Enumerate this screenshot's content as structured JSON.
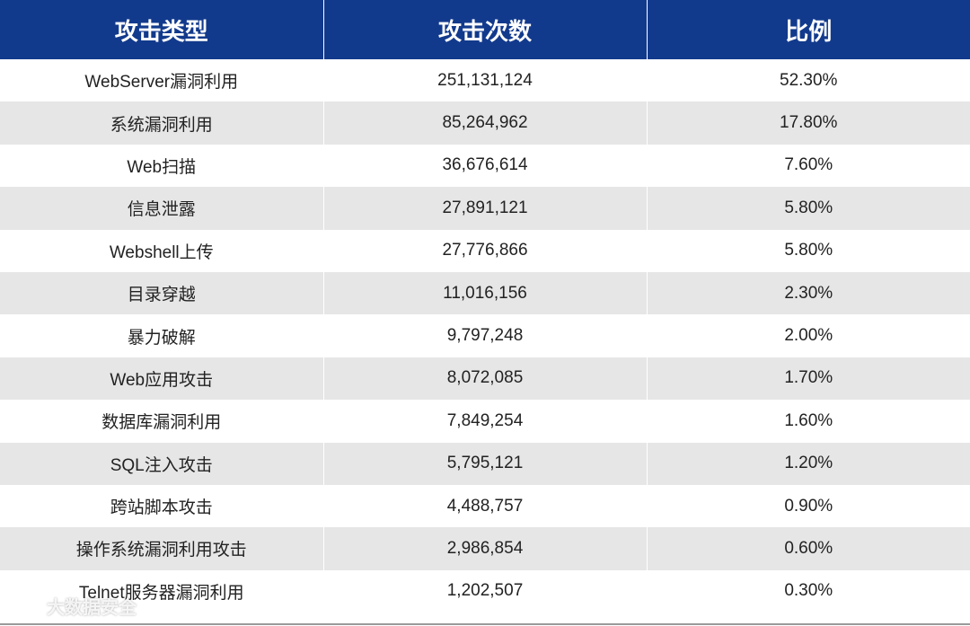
{
  "table": {
    "headers": [
      "攻击类型",
      "攻击次数",
      "比例"
    ],
    "rows": [
      [
        "WebServer漏洞利用",
        "251,131,124",
        "52.30%"
      ],
      [
        "系统漏洞利用",
        "85,264,962",
        "17.80%"
      ],
      [
        "Web扫描",
        "36,676,614",
        "7.60%"
      ],
      [
        "信息泄露",
        "27,891,121",
        "5.80%"
      ],
      [
        "Webshell上传",
        "27,776,866",
        "5.80%"
      ],
      [
        "目录穿越",
        "11,016,156",
        "2.30%"
      ],
      [
        "暴力破解",
        "9,797,248",
        "2.00%"
      ],
      [
        "Web应用攻击",
        "8,072,085",
        "1.70%"
      ],
      [
        "数据库漏洞利用",
        "7,849,254",
        "1.60%"
      ],
      [
        "SQL注入攻击",
        "5,795,121",
        "1.20%"
      ],
      [
        "跨站脚本攻击",
        "4,488,757",
        "0.90%"
      ],
      [
        "操作系统漏洞利用攻击",
        "2,986,854",
        "0.60%"
      ],
      [
        "Telnet服务器漏洞利用",
        "1,202,507",
        "0.30%"
      ]
    ]
  },
  "watermark": {
    "text": "大数据安全",
    "icon": "watermark-logo-icon"
  },
  "colors": {
    "header_bg": "#123a8c",
    "header_text": "#ffffff",
    "stripe_bg": "#e6e6e6"
  }
}
